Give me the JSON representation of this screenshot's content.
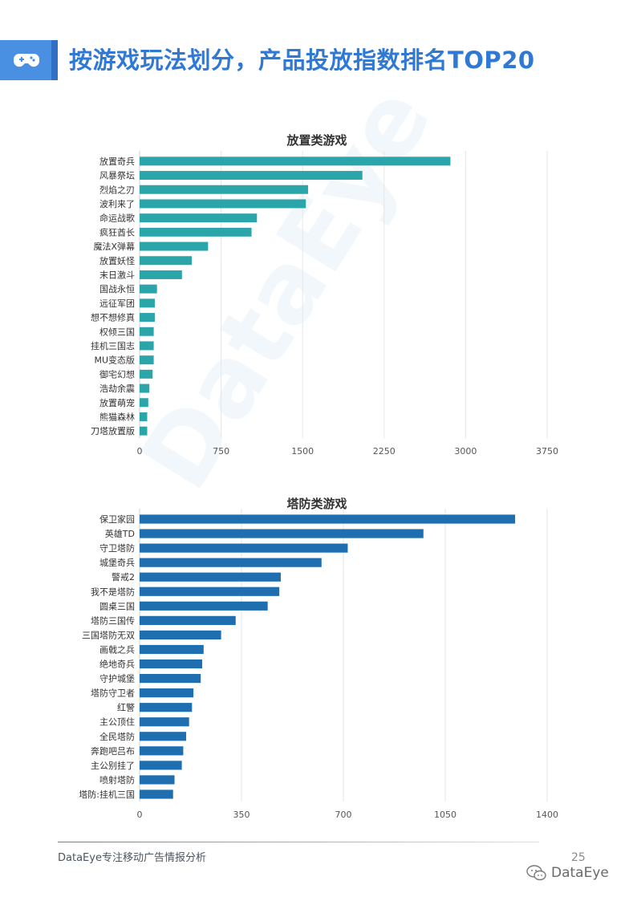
{
  "header": {
    "title": "按游戏玩法划分，产品投放指数排名TOP20",
    "icon": "gamepad-icon"
  },
  "watermark": "DataEye",
  "chart_data": [
    {
      "type": "bar",
      "orientation": "horizontal",
      "title": "放置类游戏",
      "color": "#2aa5a9",
      "categories": [
        "放置奇兵",
        "风暴祭坛",
        "烈焰之刃",
        "波利来了",
        "命运战歌",
        "疯狂酋长",
        "魔法X弹幕",
        "放置妖怪",
        "末日激斗",
        "国战永恒",
        "远征军团",
        "想不想修真",
        "权倾三国",
        "挂机三国志",
        "MU变态版",
        "御宅幻想",
        "浩劫余震",
        "放置萌宠",
        "熊猫森林",
        "刀塔放置版"
      ],
      "values": [
        2860,
        2050,
        1550,
        1530,
        1080,
        1030,
        630,
        480,
        390,
        160,
        140,
        140,
        130,
        130,
        130,
        120,
        90,
        80,
        70,
        70
      ],
      "xlim": [
        0,
        3750
      ],
      "xticks": [
        0,
        750,
        1500,
        2250,
        3000,
        3750
      ],
      "grid": true
    },
    {
      "type": "bar",
      "orientation": "horizontal",
      "title": "塔防类游戏",
      "color": "#1f6fb0",
      "categories": [
        "保卫家园",
        "英雄TD",
        "守卫塔防",
        "城堡奇兵",
        "警戒2",
        "我不是塔防",
        "圆桌三国",
        "塔防三国传",
        "三国塔防无双",
        "画戟之兵",
        "绝地奇兵",
        "守护城堡",
        "塔防守卫者",
        "红警",
        "主公顶住",
        "全民塔防",
        "奔跑吧吕布",
        "主公别挂了",
        "喷射塔防",
        "塔防:挂机三国"
      ],
      "values": [
        1290,
        975,
        715,
        625,
        485,
        480,
        440,
        330,
        280,
        220,
        215,
        210,
        185,
        180,
        170,
        160,
        150,
        145,
        120,
        115
      ],
      "xlim": [
        0,
        1400
      ],
      "xticks": [
        0,
        350,
        700,
        1050,
        1400
      ],
      "grid": true
    }
  ],
  "footer": {
    "text": "DataEye专注移动广告情报分析",
    "page_number": "25",
    "wechat_brand": "DataEye",
    "wechat_icon": "wechat-icon"
  }
}
